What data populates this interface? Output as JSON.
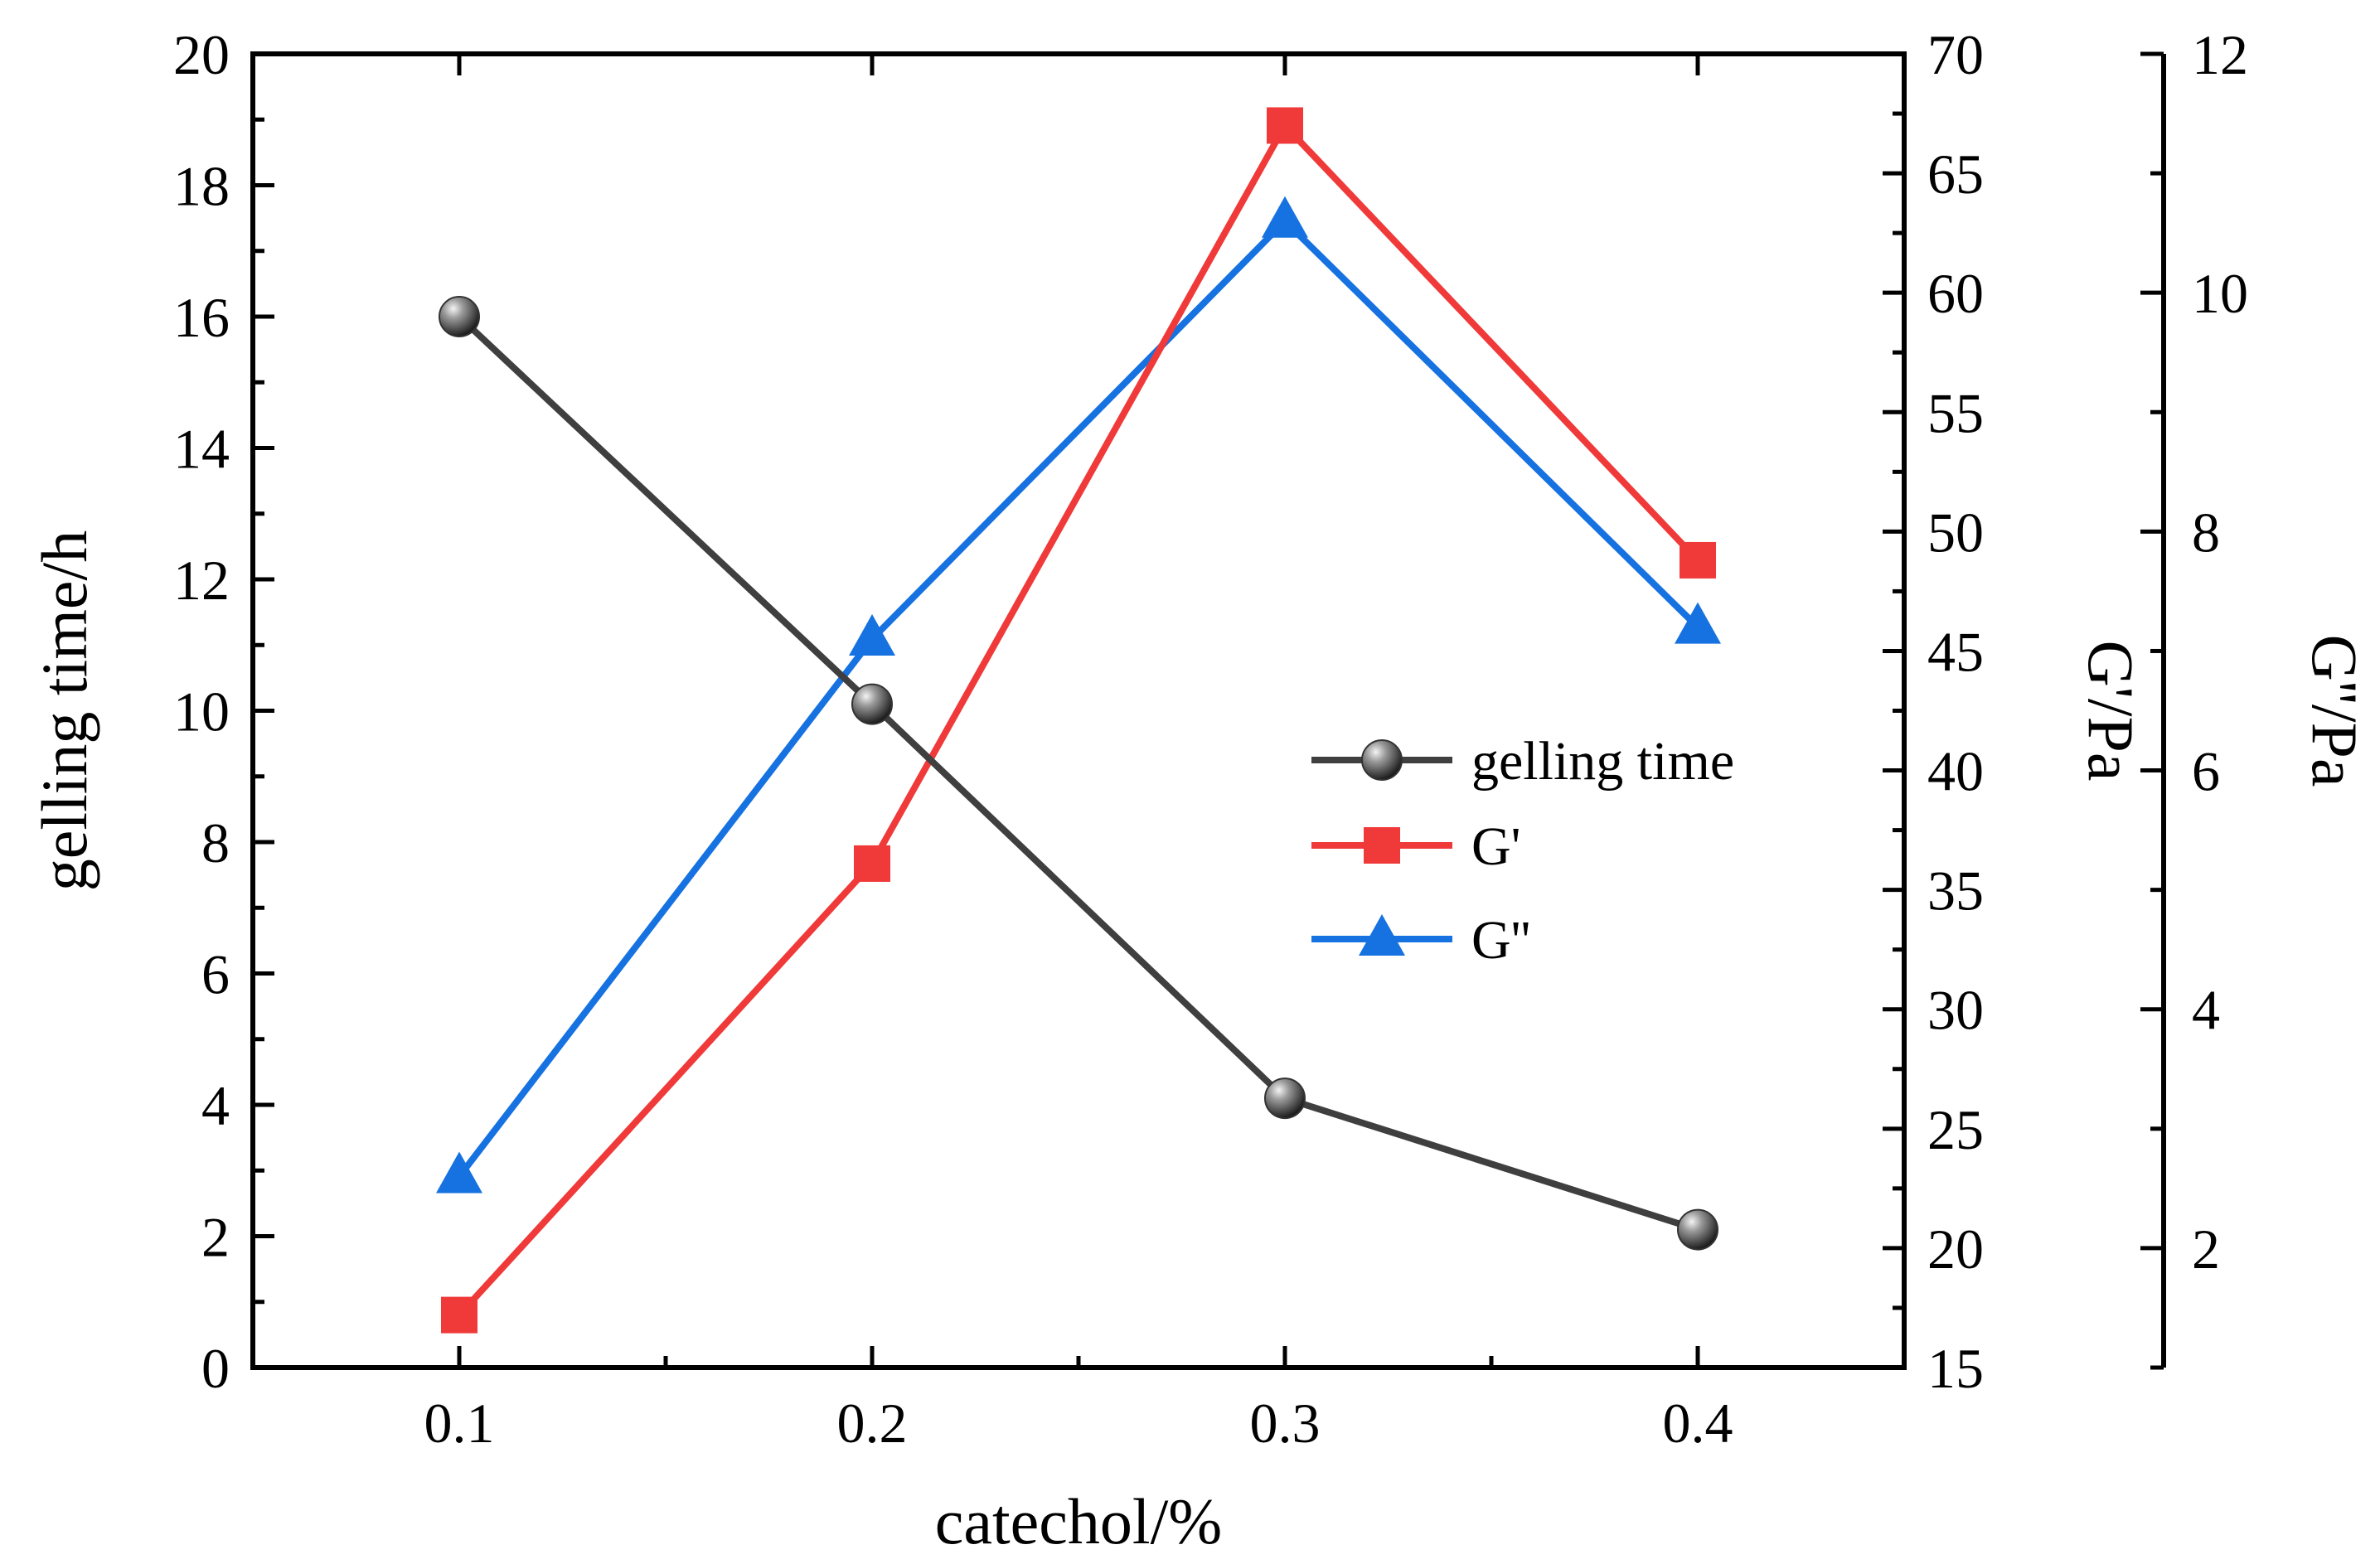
{
  "chart_data": {
    "type": "line",
    "title": "",
    "xlabel": "catechol/%",
    "categories": [
      "0.1",
      "0.2",
      "0.3",
      "0.4"
    ],
    "x": [
      0.1,
      0.2,
      0.3,
      0.4
    ],
    "xlim": [
      0.05,
      0.45
    ],
    "axes": {
      "left": {
        "label": "gelling time/h",
        "lim": [
          0,
          20
        ],
        "ticks": [
          "0",
          "2",
          "4",
          "6",
          "8",
          "10",
          "12",
          "14",
          "16",
          "18",
          "20"
        ]
      },
      "right1": {
        "label": "G'/Pa",
        "lim": [
          15,
          70
        ],
        "ticks": [
          "15",
          "20",
          "25",
          "30",
          "35",
          "40",
          "45",
          "50",
          "55",
          "60",
          "65",
          "70"
        ]
      },
      "right2": {
        "label": "G''/Pa",
        "lim": [
          1,
          12
        ],
        "ticks": [
          "2",
          "4",
          "6",
          "8",
          "10",
          "12"
        ]
      }
    },
    "series": [
      {
        "name": "gelling time",
        "axis": "left",
        "marker": "sphere",
        "color": "#3f3f3f",
        "values": [
          16.0,
          10.1,
          4.1,
          2.1
        ]
      },
      {
        "name": "G'",
        "axis": "right1",
        "marker": "square",
        "color": "#f03a3a",
        "values": [
          17.2,
          36.1,
          67.0,
          48.8
        ]
      },
      {
        "name": "G''",
        "axis": "right2",
        "marker": "triangle",
        "color": "#1672e0",
        "values": [
          2.6,
          7.1,
          10.6,
          7.2
        ]
      }
    ],
    "legend": {
      "position": "center-right"
    }
  }
}
